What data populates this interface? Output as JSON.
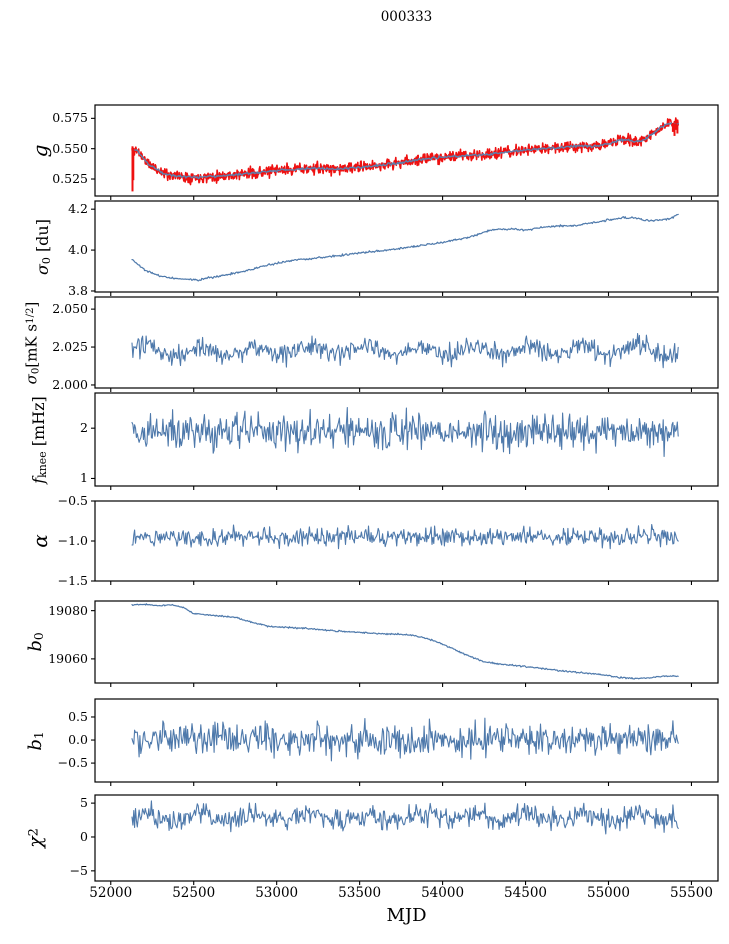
{
  "chart_data": {
    "type": "line",
    "title": "000333",
    "xlabel": "MJD",
    "x_axis": {
      "tick_labels": [
        "52000",
        "52500",
        "53000",
        "53500",
        "54000",
        "54500",
        "55000",
        "55500"
      ],
      "tick_values": [
        52000,
        52500,
        53000,
        53500,
        54000,
        54500,
        55000,
        55500
      ],
      "lim": [
        51905,
        55660
      ],
      "data_range": [
        52128,
        55420
      ]
    },
    "colors": {
      "primary_line": "#4e79ab",
      "raw_data": "#ee1111",
      "overlay_fit": "#5d80ad",
      "axis": "#000000",
      "background": "#ffffff"
    },
    "panels": [
      {
        "name": "g",
        "ylabel_segments": [
          {
            "t": "g",
            "it": 1
          }
        ],
        "ytick_labels": [
          "0.575",
          "0.550",
          "0.525"
        ],
        "ytick_values": [
          0.575,
          0.55,
          0.525
        ],
        "ylim": [
          0.511,
          0.586
        ],
        "series": [
          {
            "name": "g-raw",
            "color": "#ee1111",
            "width": 1.6,
            "n": 1150,
            "noise": 0.0045,
            "seed": 11,
            "keypoints": [
              [
                52128,
                0.549
              ],
              [
                52160,
                0.5485
              ],
              [
                52230,
                0.537
              ],
              [
                52320,
                0.5295
              ],
              [
                52420,
                0.5272
              ],
              [
                52520,
                0.5265
              ],
              [
                52620,
                0.5272
              ],
              [
                52750,
                0.5285
              ],
              [
                52850,
                0.5298
              ],
              [
                52950,
                0.5312
              ],
              [
                53050,
                0.5325
              ],
              [
                53150,
                0.5335
              ],
              [
                53250,
                0.5338
              ],
              [
                53350,
                0.5332
              ],
              [
                53450,
                0.534
              ],
              [
                53550,
                0.5352
              ],
              [
                53650,
                0.5368
              ],
              [
                53750,
                0.5385
              ],
              [
                53850,
                0.5408
              ],
              [
                53950,
                0.5425
              ],
              [
                54050,
                0.5435
              ],
              [
                54150,
                0.5445
              ],
              [
                54250,
                0.5452
              ],
              [
                54350,
                0.5465
              ],
              [
                54450,
                0.548
              ],
              [
                54550,
                0.5495
              ],
              [
                54650,
                0.5505
              ],
              [
                54750,
                0.5518
              ],
              [
                54820,
                0.5525
              ],
              [
                54900,
                0.5518
              ],
              [
                54980,
                0.5535
              ],
              [
                55060,
                0.5565
              ],
              [
                55120,
                0.5578
              ],
              [
                55160,
                0.5558
              ],
              [
                55200,
                0.5565
              ],
              [
                55240,
                0.5595
              ],
              [
                55280,
                0.5638
              ],
              [
                55320,
                0.568
              ],
              [
                55360,
                0.5705
              ],
              [
                55400,
                0.5708
              ],
              [
                55420,
                0.5698
              ]
            ]
          },
          {
            "name": "g-fit",
            "color": "#5d80ad",
            "width": 1.4,
            "n": 620,
            "noise": 0.001,
            "seed": 12,
            "keypoints": [
              [
                52128,
                0.549
              ],
              [
                52160,
                0.5485
              ],
              [
                52230,
                0.537
              ],
              [
                52320,
                0.5295
              ],
              [
                52420,
                0.5272
              ],
              [
                52520,
                0.5265
              ],
              [
                52620,
                0.5272
              ],
              [
                52750,
                0.5285
              ],
              [
                52850,
                0.5298
              ],
              [
                52950,
                0.5312
              ],
              [
                53050,
                0.5325
              ],
              [
                53150,
                0.5335
              ],
              [
                53250,
                0.5338
              ],
              [
                53350,
                0.5332
              ],
              [
                53450,
                0.534
              ],
              [
                53550,
                0.5352
              ],
              [
                53650,
                0.5368
              ],
              [
                53750,
                0.5385
              ],
              [
                53850,
                0.5408
              ],
              [
                53950,
                0.5425
              ],
              [
                54050,
                0.5435
              ],
              [
                54150,
                0.5445
              ],
              [
                54250,
                0.5452
              ],
              [
                54350,
                0.5465
              ],
              [
                54450,
                0.548
              ],
              [
                54550,
                0.5495
              ],
              [
                54650,
                0.5505
              ],
              [
                54750,
                0.5518
              ],
              [
                54820,
                0.5525
              ],
              [
                54900,
                0.5518
              ],
              [
                54980,
                0.5535
              ],
              [
                55060,
                0.5565
              ],
              [
                55120,
                0.5578
              ],
              [
                55160,
                0.5558
              ],
              [
                55200,
                0.5565
              ],
              [
                55240,
                0.5595
              ],
              [
                55280,
                0.5638
              ],
              [
                55320,
                0.568
              ],
              [
                55360,
                0.5705
              ],
              [
                55400,
                0.5708
              ],
              [
                55420,
                0.5698
              ]
            ]
          }
        ],
        "spikes": {
          "name": "g-spikes",
          "color": "#ee1111",
          "width": 2,
          "lines": [
            [
              52131,
              0.5148,
              0.552
            ],
            [
              52136,
              0.524,
              0.5505
            ],
            [
              55388,
              0.5638,
              0.5712
            ],
            [
              55398,
              0.5605,
              0.5708
            ],
            [
              55407,
              0.5655,
              0.5708
            ],
            [
              55415,
              0.5625,
              0.57
            ]
          ]
        }
      },
      {
        "name": "sigma0-du",
        "ylabel_segments": [
          {
            "t": "σ",
            "it": 1
          },
          {
            "t": "0",
            "sub": 1
          },
          {
            "t": " [du]"
          }
        ],
        "ytick_labels": [
          "4.2",
          "4.0",
          "3.8"
        ],
        "ytick_values": [
          4.2,
          4.0,
          3.8
        ],
        "ylim": [
          3.795,
          4.24
        ],
        "series": [
          {
            "name": "sigma0-du",
            "color": "#4e79ab",
            "width": 1.2,
            "n": 650,
            "noise": 0.005,
            "seed": 21,
            "keypoints": [
              [
                52128,
                3.955
              ],
              [
                52200,
                3.905
              ],
              [
                52300,
                3.872
              ],
              [
                52420,
                3.857
              ],
              [
                52530,
                3.855
              ],
              [
                52650,
                3.873
              ],
              [
                52800,
                3.895
              ],
              [
                52950,
                3.928
              ],
              [
                53100,
                3.95
              ],
              [
                53250,
                3.962
              ],
              [
                53400,
                3.975
              ],
              [
                53550,
                3.99
              ],
              [
                53700,
                4.002
              ],
              [
                53850,
                4.02
              ],
              [
                54000,
                4.038
              ],
              [
                54150,
                4.06
              ],
              [
                54300,
                4.1
              ],
              [
                54400,
                4.103
              ],
              [
                54500,
                4.098
              ],
              [
                54600,
                4.112
              ],
              [
                54700,
                4.118
              ],
              [
                54800,
                4.12
              ],
              [
                54900,
                4.132
              ],
              [
                55000,
                4.148
              ],
              [
                55080,
                4.158
              ],
              [
                55160,
                4.157
              ],
              [
                55240,
                4.143
              ],
              [
                55310,
                4.147
              ],
              [
                55370,
                4.155
              ],
              [
                55420,
                4.175
              ]
            ]
          }
        ]
      },
      {
        "name": "sigma0-mks",
        "ylabel_segments": [
          {
            "t": "σ",
            "it": 1
          },
          {
            "t": "0",
            "sub": 1
          },
          {
            "t": "[mK s"
          },
          {
            "t": "1/2",
            "sup": 1
          },
          {
            "t": "]"
          }
        ],
        "ytick_labels": [
          "2.050",
          "2.025",
          "2.000"
        ],
        "ytick_values": [
          2.05,
          2.025,
          2.0
        ],
        "ylim": [
          1.998,
          2.058
        ],
        "series": [
          {
            "name": "sigma0-mks",
            "color": "#4e79ab",
            "width": 1.1,
            "n": 620,
            "noise": 0.0068,
            "seed": 31,
            "mean": 2.0225,
            "period": 330,
            "amp": 0.0028
          }
        ]
      },
      {
        "name": "fknee",
        "ylabel_segments": [
          {
            "t": "f",
            "it": 1
          },
          {
            "t": "knee",
            "sub": 1
          },
          {
            "t": " [mHz]"
          }
        ],
        "ytick_labels": [
          "2",
          "1"
        ],
        "ytick_values": [
          2,
          1
        ],
        "ylim": [
          0.85,
          2.7
        ],
        "series": [
          {
            "name": "fknee",
            "color": "#4e79ab",
            "width": 1.1,
            "n": 620,
            "noise": 0.37,
            "seed": 41,
            "mean": 1.93
          }
        ]
      },
      {
        "name": "alpha",
        "ylabel_segments": [
          {
            "t": "α",
            "it": 1
          }
        ],
        "ytick_labels": [
          "−0.5",
          "−1.0",
          "−1.5"
        ],
        "ytick_values": [
          -0.5,
          -1.0,
          -1.5
        ],
        "ylim": [
          -1.5,
          -0.5
        ],
        "series": [
          {
            "name": "alpha",
            "color": "#4e79ab",
            "width": 1.1,
            "n": 620,
            "noise": 0.115,
            "seed": 51,
            "mean": -0.95
          }
        ]
      },
      {
        "name": "b0",
        "ylabel_segments": [
          {
            "t": "b",
            "it": 1
          },
          {
            "t": "0",
            "sub": 1
          }
        ],
        "ytick_labels": [
          "19080",
          "19060"
        ],
        "ytick_values": [
          19080,
          19060
        ],
        "ylim": [
          19050,
          19084
        ],
        "series": [
          {
            "name": "b0",
            "color": "#4e79ab",
            "width": 1.2,
            "n": 650,
            "noise": 0.3,
            "seed": 61,
            "keypoints": [
              [
                52128,
                19082.3
              ],
              [
                52200,
                19082.6
              ],
              [
                52280,
                19082.1
              ],
              [
                52360,
                19082.4
              ],
              [
                52440,
                19081.2
              ],
              [
                52500,
                19078.8
              ],
              [
                52560,
                19078.4
              ],
              [
                52650,
                19077.8
              ],
              [
                52750,
                19077.2
              ],
              [
                52850,
                19075.2
              ],
              [
                52957,
                19073.4
              ],
              [
                53100,
                19072.9
              ],
              [
                53250,
                19072.3
              ],
              [
                53350,
                19071.6
              ],
              [
                53450,
                19071.2
              ],
              [
                53550,
                19070.7
              ],
              [
                53650,
                19070.4
              ],
              [
                53750,
                19070.2
              ],
              [
                53850,
                19069.4
              ],
              [
                53950,
                19067.5
              ],
              [
                54050,
                19064.5
              ],
              [
                54150,
                19061.5
              ],
              [
                54250,
                19058.8
              ],
              [
                54350,
                19057.8
              ],
              [
                54450,
                19057.2
              ],
              [
                54550,
                19056.4
              ],
              [
                54650,
                19055.6
              ],
              [
                54750,
                19054.8
              ],
              [
                54850,
                19054.2
              ],
              [
                54950,
                19053.6
              ],
              [
                55050,
                19052.4
              ],
              [
                55150,
                19051.8
              ],
              [
                55250,
                19052.2
              ],
              [
                55330,
                19052.9
              ],
              [
                55420,
                19052.8
              ]
            ]
          }
        ]
      },
      {
        "name": "b1",
        "ylabel_segments": [
          {
            "t": "b",
            "it": 1
          },
          {
            "t": "1",
            "sub": 1
          }
        ],
        "ytick_labels": [
          "0.5",
          "0.0",
          "−0.5"
        ],
        "ytick_values": [
          0.5,
          0.0,
          -0.5
        ],
        "ylim": [
          -0.91,
          0.89
        ],
        "series": [
          {
            "name": "b1",
            "color": "#4e79ab",
            "width": 1.1,
            "n": 620,
            "noise": 0.34,
            "seed": 71,
            "mean": 0.02
          }
        ]
      },
      {
        "name": "chi2",
        "ylabel_segments": [
          {
            "t": "χ",
            "it": 1
          },
          {
            "t": "2",
            "sup": 1
          }
        ],
        "ytick_labels": [
          "5",
          "0",
          "−5"
        ],
        "ytick_values": [
          5,
          0,
          -5
        ],
        "ylim": [
          -6.5,
          6.2
        ],
        "series": [
          {
            "name": "chi2",
            "color": "#4e79ab",
            "width": 1.1,
            "n": 620,
            "noise": 1.6,
            "seed": 81,
            "mean": 2.9,
            "period": 330,
            "amp": 0.5
          }
        ]
      }
    ]
  }
}
